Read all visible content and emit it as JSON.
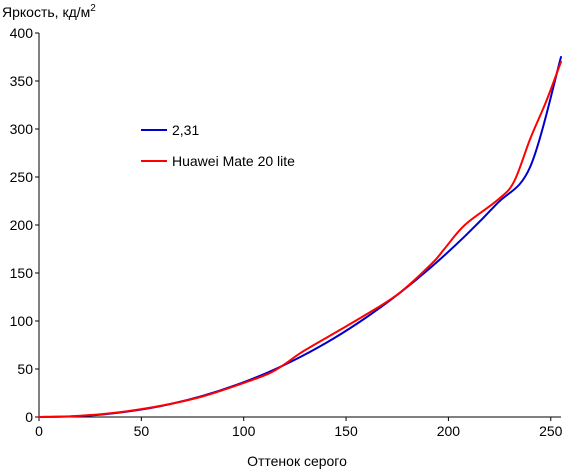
{
  "chart_data": {
    "type": "line",
    "title": "",
    "ylabel": "Яркость, кд/м",
    "ylabel_superscript": "2",
    "xlabel": "Оттенок серого",
    "xlim": [
      0,
      255
    ],
    "ylim": [
      0,
      400
    ],
    "xticks": [
      0,
      50,
      100,
      150,
      200,
      250
    ],
    "yticks": [
      0,
      50,
      100,
      150,
      200,
      250,
      300,
      350,
      400
    ],
    "grid": false,
    "legend_position": "upper-left inside plot",
    "series": [
      {
        "name": "2,31",
        "color": "#0000cc",
        "x": [
          0,
          16,
          32,
          48,
          64,
          80,
          96,
          112,
          128,
          144,
          160,
          176,
          192,
          208,
          224,
          240,
          255
        ],
        "y": [
          0.0,
          0.6,
          2.9,
          7.1,
          13.4,
          22.0,
          33.1,
          46.6,
          62.9,
          81.9,
          103.9,
          128.8,
          156.9,
          188.2,
          222.8,
          260.8,
          375.0
        ]
      },
      {
        "name": "Huawei Mate 20 lite",
        "color": "#ff0000",
        "x": [
          0,
          16,
          32,
          48,
          64,
          80,
          96,
          112,
          120,
          128,
          144,
          160,
          176,
          192,
          198,
          208,
          224,
          232,
          240,
          248,
          255
        ],
        "y": [
          0.0,
          0.8,
          3.2,
          7.5,
          13.5,
          21.5,
          32.5,
          45.0,
          55.0,
          67.0,
          87.0,
          107.0,
          129.0,
          160.0,
          175.0,
          200.0,
          226.0,
          245.0,
          290.0,
          330.0,
          370.0
        ]
      }
    ]
  }
}
